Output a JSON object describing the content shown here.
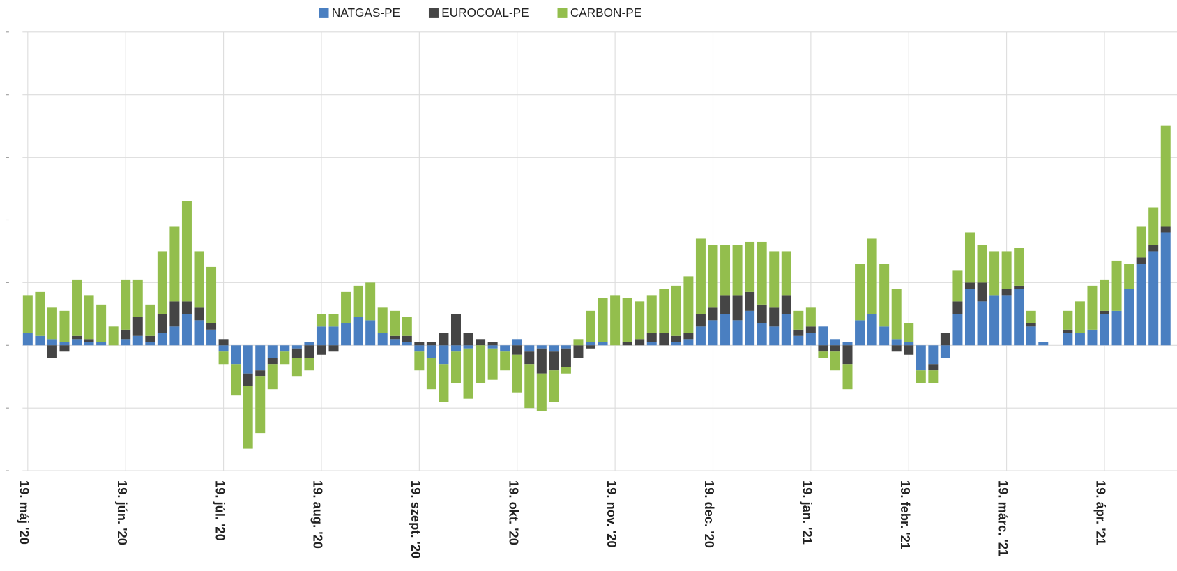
{
  "chart_data": {
    "type": "bar",
    "stacked": true,
    "categories": [
      "19. máj '20",
      null,
      null,
      null,
      null,
      null,
      null,
      null,
      "19. jún. '20",
      null,
      null,
      null,
      null,
      null,
      null,
      null,
      "19. júl. '20",
      null,
      null,
      null,
      null,
      null,
      null,
      null,
      "19. aug. '20",
      null,
      null,
      null,
      null,
      null,
      null,
      null,
      "19. szept. '20",
      null,
      null,
      null,
      null,
      null,
      null,
      null,
      "19. okt. '20",
      null,
      null,
      null,
      null,
      null,
      null,
      null,
      "19. nov. '20",
      null,
      null,
      null,
      null,
      null,
      null,
      null,
      "19. dec. '20",
      null,
      null,
      null,
      null,
      null,
      null,
      null,
      "19. jan. '21",
      null,
      null,
      null,
      null,
      null,
      null,
      null,
      "19. febr. '21",
      null,
      null,
      null,
      null,
      null,
      null,
      null,
      "19. márc. '21",
      null,
      null,
      null,
      null,
      null,
      null,
      null,
      "19. ápr. '21",
      null,
      null,
      null,
      null,
      null
    ],
    "series": [
      {
        "name": "NATGAS-PE",
        "color": "#4a7fc1",
        "values": [
          0.2,
          0.15,
          0.1,
          0.05,
          0.1,
          0.05,
          0.05,
          0,
          0.1,
          0.15,
          0.05,
          0.2,
          0.3,
          0.5,
          0.4,
          0.25,
          -0.1,
          -0.3,
          -0.45,
          -0.4,
          -0.2,
          -0.1,
          -0.05,
          0.05,
          0.3,
          0.3,
          0.35,
          0.45,
          0.4,
          0.2,
          0.1,
          0.05,
          -0.1,
          -0.2,
          -0.3,
          -0.1,
          -0.05,
          0,
          -0.05,
          -0.1,
          0.1,
          -0.1,
          -0.05,
          -0.1,
          -0.05,
          0,
          0.05,
          0.05,
          0,
          0,
          0,
          0.05,
          0,
          0.05,
          0.1,
          0.3,
          0.4,
          0.5,
          0.4,
          0.55,
          0.35,
          0.3,
          0.5,
          0.15,
          0.2,
          0.3,
          0.1,
          0.05,
          0.4,
          0.5,
          0.3,
          0.1,
          0.05,
          -0.4,
          -0.3,
          -0.2,
          0.5,
          0.9,
          0.7,
          0.8,
          0.8,
          0.9,
          0.3,
          0.05,
          0,
          0.2,
          0.2,
          0.25,
          0.5,
          0.55,
          0.9,
          1.3,
          1.5,
          1.8
        ]
      },
      {
        "name": "EUROCOAL-PE",
        "color": "#454545",
        "values": [
          0,
          0,
          -0.2,
          -0.1,
          0.05,
          0.05,
          0,
          0,
          0.15,
          0.3,
          0.1,
          0.3,
          0.4,
          0.2,
          0.2,
          0.1,
          0.1,
          0,
          -0.2,
          -0.1,
          -0.1,
          0,
          -0.15,
          -0.2,
          -0.15,
          -0.1,
          0,
          0,
          0,
          0,
          0.05,
          0.1,
          0.05,
          0.05,
          0.2,
          0.5,
          0.2,
          0.1,
          0.05,
          0,
          -0.15,
          -0.2,
          -0.4,
          -0.3,
          -0.3,
          -0.2,
          -0.05,
          0,
          0,
          0.05,
          0.1,
          0.15,
          0.2,
          0.1,
          0.1,
          0.2,
          0.2,
          0.3,
          0.4,
          0.3,
          0.3,
          0.3,
          0.3,
          0.1,
          0.1,
          -0.1,
          -0.1,
          -0.3,
          0,
          0,
          0,
          -0.1,
          -0.15,
          0,
          -0.1,
          0.2,
          0.2,
          0.1,
          0.3,
          0,
          0.1,
          0.05,
          0.05,
          0,
          0,
          0.05,
          0,
          0,
          0.05,
          0,
          0,
          0.1,
          0.1,
          0.1
        ]
      },
      {
        "name": "CARBON-PE",
        "color": "#93be4d",
        "values": [
          0.6,
          0.7,
          0.5,
          0.5,
          0.9,
          0.7,
          0.6,
          0.3,
          0.8,
          0.6,
          0.5,
          1.0,
          1.2,
          1.6,
          0.9,
          0.9,
          -0.2,
          -0.5,
          -1.0,
          -0.9,
          -0.4,
          -0.2,
          -0.3,
          -0.2,
          0.2,
          0.2,
          0.5,
          0.5,
          0.6,
          0.4,
          0.4,
          0.3,
          -0.3,
          -0.5,
          -0.6,
          -0.5,
          -0.8,
          -0.6,
          -0.5,
          -0.3,
          -0.6,
          -0.7,
          -0.6,
          -0.5,
          -0.1,
          0.1,
          0.5,
          0.7,
          0.8,
          0.7,
          0.6,
          0.6,
          0.7,
          0.8,
          0.9,
          1.2,
          1.0,
          0.8,
          0.8,
          0.8,
          1.0,
          0.9,
          0.7,
          0.3,
          0.3,
          -0.1,
          -0.3,
          -0.4,
          0.9,
          1.2,
          1.0,
          0.8,
          0.3,
          -0.2,
          -0.2,
          0,
          0.5,
          0.8,
          0.6,
          0.7,
          0.6,
          0.6,
          0.2,
          0,
          0,
          0.3,
          0.5,
          0.7,
          0.5,
          0.8,
          0.4,
          0.5,
          0.6,
          1.6
        ]
      }
    ],
    "ylim": [
      -2,
      5
    ],
    "yticks": [
      -2,
      -1,
      0,
      1,
      2,
      3,
      4,
      5
    ],
    "grid": true,
    "legend": "top"
  }
}
